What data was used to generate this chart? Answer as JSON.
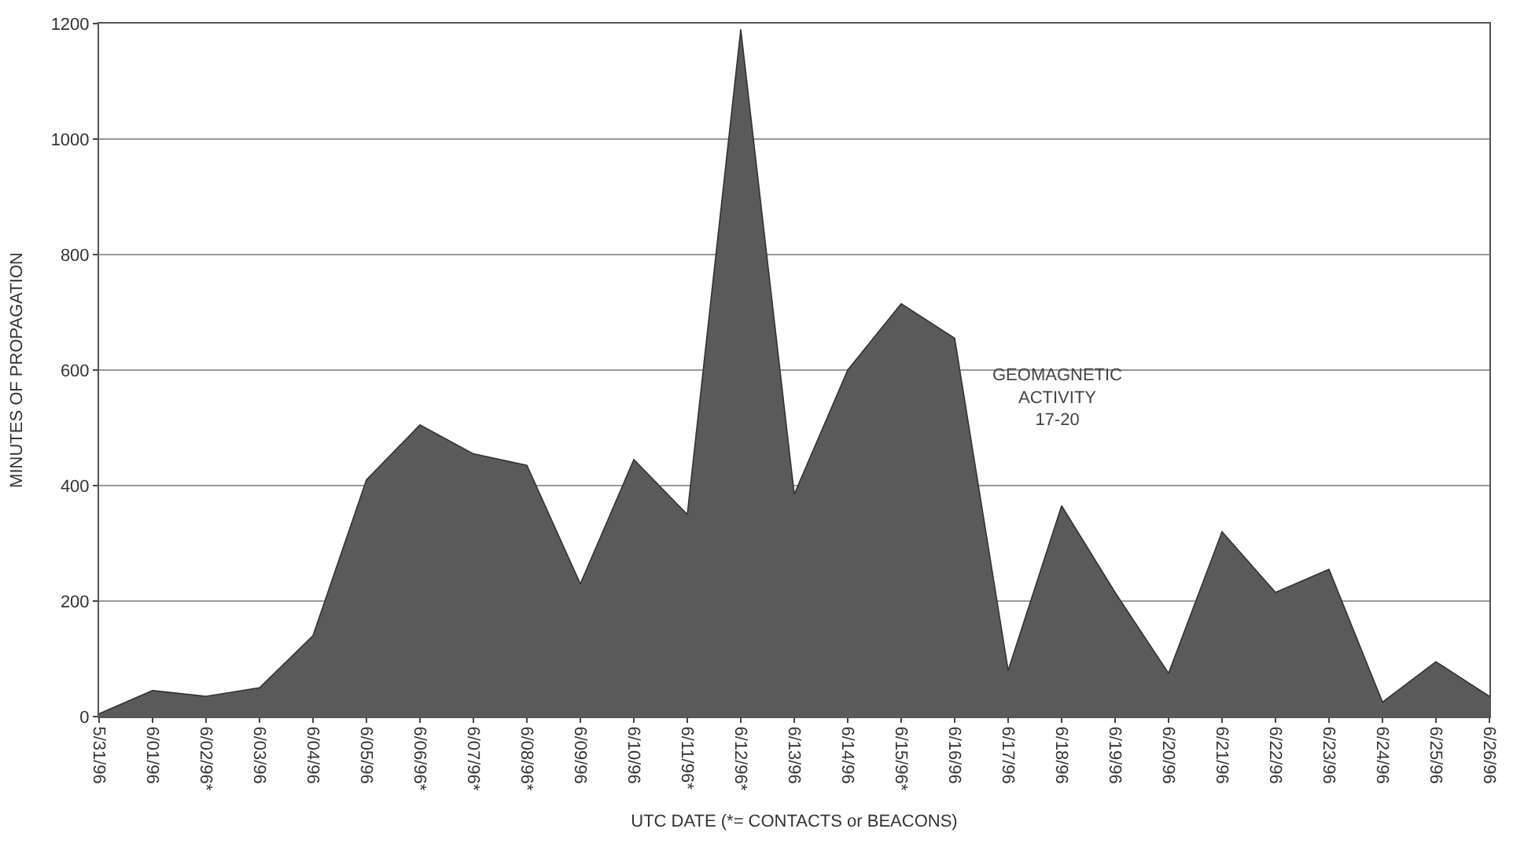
{
  "chart_data": {
    "type": "area",
    "xlabel": "UTC DATE (*= CONTACTS or BEACONS)",
    "ylabel": "MINUTES OF PROPAGATION",
    "categories": [
      "5/31/96",
      "6/01/96",
      "6/02/96*",
      "6/03/96",
      "6/04/96",
      "6/05/96",
      "6/06/96*",
      "6/07/96*",
      "6/08/96*",
      "6/09/96",
      "6/10/96",
      "6/11/96*",
      "6/12/96*",
      "6/13/96",
      "6/14/96",
      "6/15/96*",
      "6/16/96",
      "6/17/96",
      "6/18/96",
      "6/19/96",
      "6/20/96",
      "6/21/96",
      "6/22/96",
      "6/23/96",
      "6/24/96",
      "6/25/96",
      "6/26/96"
    ],
    "values": [
      5,
      45,
      35,
      50,
      140,
      410,
      505,
      455,
      435,
      230,
      445,
      350,
      1190,
      385,
      600,
      715,
      655,
      80,
      365,
      215,
      75,
      320,
      215,
      255,
      25,
      95,
      35
    ],
    "color": "#5a5a5a",
    "ylim": [
      0,
      1200
    ],
    "yticks": [
      0,
      200,
      400,
      600,
      800,
      1000,
      1200
    ],
    "grid": "y",
    "annotations": [
      "GEOMAGNETIC\nACTIVITY\n17-20"
    ]
  }
}
